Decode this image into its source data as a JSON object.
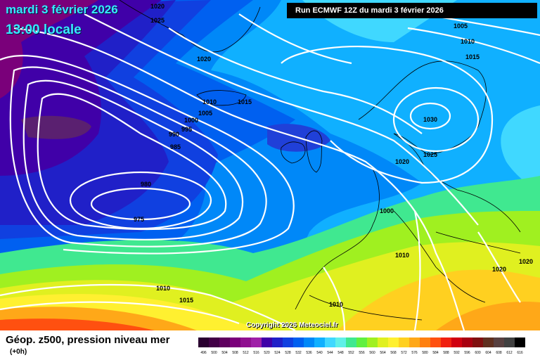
{
  "header": {
    "date_line": "mardi 3 février 2026",
    "time_line": "13:00 locale",
    "run_info": "Run ECMWF 12Z du mardi 3 février 2026"
  },
  "footer": {
    "field_name": "Géop. z500, pression niveau mer",
    "lead_time": "(+0h)",
    "copyright": "Copyright 2026 Meteociel.fr"
  },
  "isobar_labels": [
    "1020",
    "1025",
    "1005",
    "1010",
    "1015",
    "1020",
    "1010",
    "1015",
    "1000",
    "1005",
    "990",
    "995",
    "985",
    "980",
    "975",
    "1030",
    "1025",
    "1020",
    "1000",
    "1010",
    "1020",
    "1020",
    "1010",
    "1015",
    "1010"
  ],
  "color_scale": {
    "labels": [
      "496",
      "500",
      "504",
      "508",
      "512",
      "516",
      "520",
      "524",
      "528",
      "532",
      "536",
      "540",
      "544",
      "548",
      "552",
      "556",
      "560",
      "564",
      "568",
      "572",
      "576",
      "580",
      "584",
      "588",
      "592",
      "596",
      "600",
      "604",
      "608",
      "612",
      "616"
    ],
    "colors": [
      "#2a0030",
      "#420046",
      "#5e005e",
      "#7a007a",
      "#901090",
      "#a020a8",
      "#4000a8",
      "#2020c8",
      "#1040e0",
      "#0060f0",
      "#0088f8",
      "#10b0ff",
      "#40d8ff",
      "#60f0e8",
      "#40e890",
      "#60f040",
      "#a0f020",
      "#e0f020",
      "#fff030",
      "#ffd020",
      "#ffa818",
      "#ff8010",
      "#ff5010",
      "#f02010",
      "#d00010",
      "#a80010",
      "#801010",
      "#603020",
      "#584040",
      "#404040",
      "#000000"
    ]
  }
}
